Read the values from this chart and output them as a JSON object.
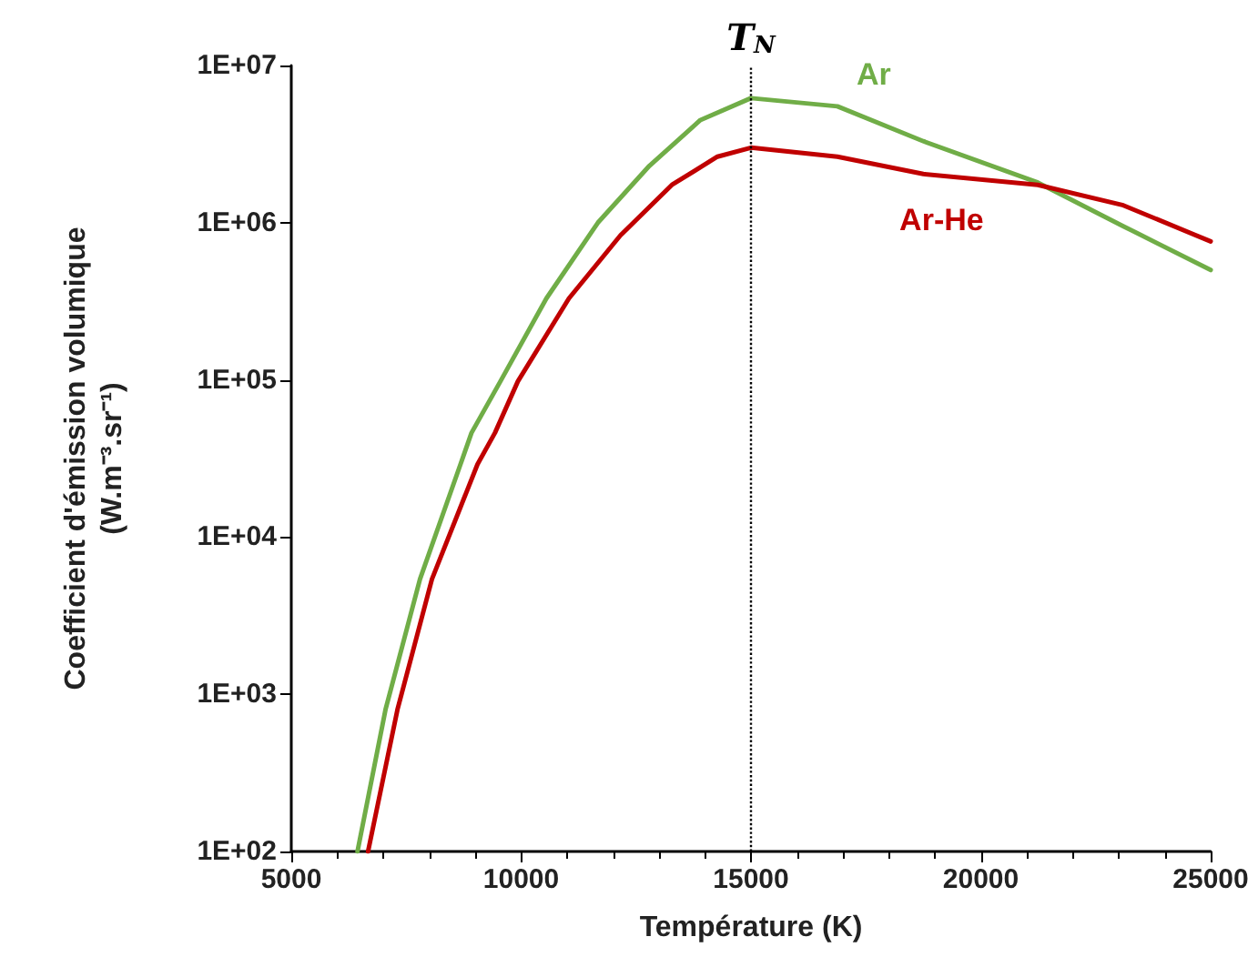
{
  "chart_data": {
    "type": "line",
    "xlabel": "Température (K)",
    "ylabel": "Coefficient d'émission volumique\n(W.m⁻³.sr⁻¹)",
    "log": "y",
    "xlim": [
      5000,
      25000
    ],
    "xticks": [
      5000,
      10000,
      15000,
      20000,
      25000
    ],
    "ylim": [
      100,
      10000000
    ],
    "yticks": [
      {
        "value": 100,
        "label": "1E+02"
      },
      {
        "value": 1000,
        "label": "1E+03"
      },
      {
        "value": 10000,
        "label": "1E+04"
      },
      {
        "value": 100000,
        "label": "1E+05"
      },
      {
        "value": 1000000,
        "label": "1E+06"
      },
      {
        "value": 10000000,
        "label": "1E+07"
      }
    ],
    "grid": false,
    "legend": false,
    "marker": "none",
    "line_style": "solid",
    "series": [
      {
        "name": "Ar",
        "color": "#70ad47",
        "x": [
          6440,
          7050,
          7800,
          8680,
          8920,
          9550,
          10550,
          11670,
          12790,
          13900,
          15000,
          16880,
          18750,
          21240,
          23100,
          25000
        ],
        "values": [
          100,
          800,
          5400,
          29000,
          46000,
          98000,
          330000,
          1000000,
          2300000,
          4500000,
          6200000,
          5500000,
          3300000,
          1800000,
          950000,
          500000
        ]
      },
      {
        "name": "Ar-He",
        "color": "#c00000",
        "x": [
          6670,
          7310,
          8060,
          9050,
          9430,
          9930,
          11040,
          12160,
          13280,
          14270,
          15000,
          16880,
          18750,
          21240,
          23100,
          25000
        ],
        "values": [
          100,
          800,
          5400,
          29000,
          46000,
          98000,
          330000,
          830000,
          1740000,
          2630000,
          3000000,
          2630000,
          2040000,
          1740000,
          1290000,
          760000
        ]
      }
    ],
    "ref_lines": [
      {
        "axis": "x",
        "value": 15000,
        "label": "T$_{N}$",
        "color": "#000000",
        "line_style": "dotted"
      }
    ]
  }
}
